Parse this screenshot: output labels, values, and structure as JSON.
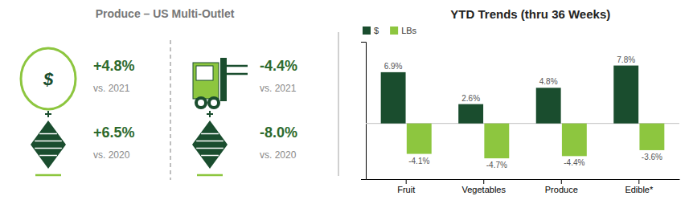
{
  "chart_data": {
    "type": "bar",
    "title": "YTD Trends (thru 36 Weeks)",
    "annotations": [
      "Produce – US Multi-Outlet",
      "+4.8%",
      "vs. 2021",
      "+6.5%",
      "vs. 2020",
      "-4.4%",
      "vs. 2021",
      "-8.0%",
      "vs. 2020"
    ],
    "categories": [
      "Fruit",
      "Vegetables",
      "Produce",
      "Edible*"
    ],
    "series": [
      {
        "name": "$",
        "color": "#1a4d2e",
        "values": [
          6.9,
          2.6,
          4.8,
          7.8
        ],
        "value_labels": [
          "6.9%",
          "2.6%",
          "4.8%",
          "7.8%"
        ]
      },
      {
        "name": "LBs",
        "color": "#8dc63f",
        "values": [
          -4.1,
          -4.7,
          -4.4,
          -3.6
        ],
        "value_labels": [
          "-4.1%",
          "-4.7%",
          "-4.4%",
          "-3.6%"
        ]
      }
    ],
    "ylim": [
      -7.5,
      11
    ],
    "yticks": [],
    "grid": false,
    "legend": "upper left",
    "data_labels": true,
    "tick_labels": "x"
  }
}
